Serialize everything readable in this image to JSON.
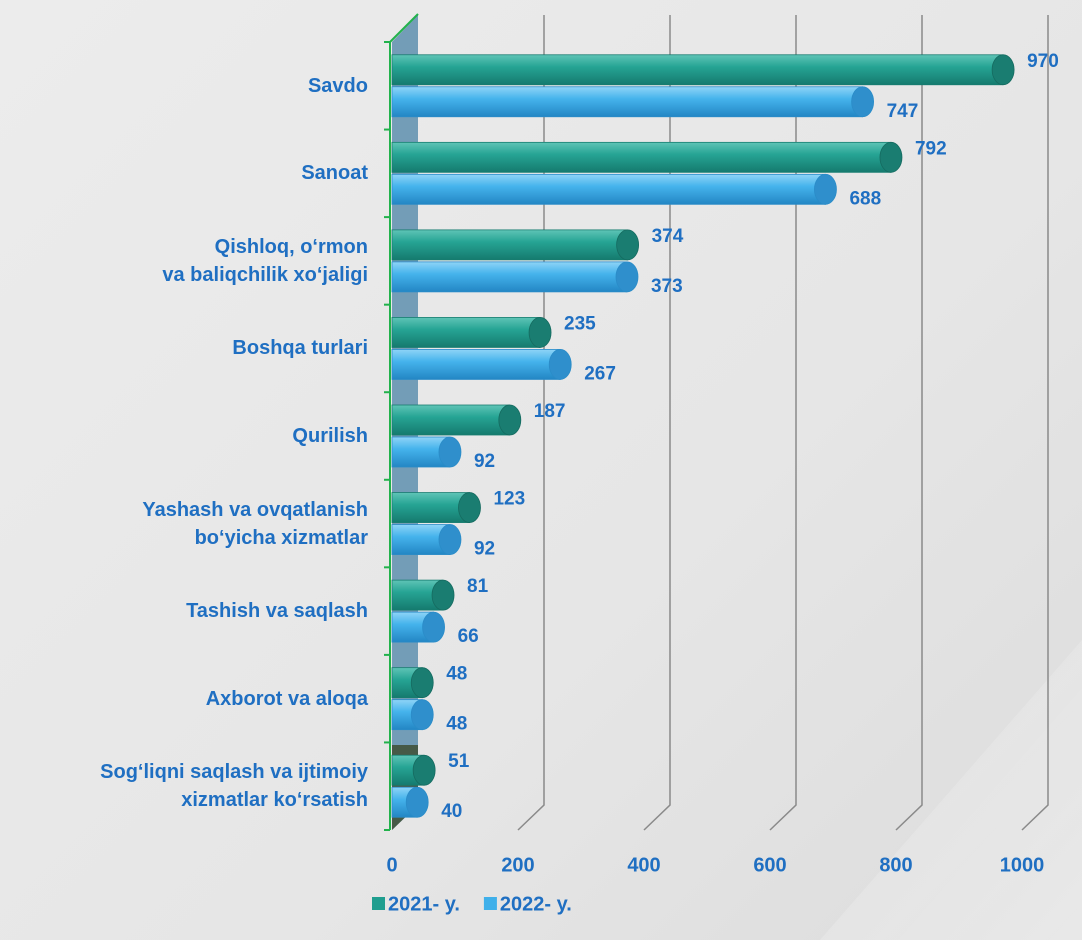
{
  "chart_data": {
    "type": "bar3d-horizontal",
    "categories": [
      "Savdo",
      "Sanoat",
      "Qishloq, o‘rmon\nva baliqchilik xo‘jaligi",
      "Boshqa turlari",
      "Qurilish",
      "Yashash va ovqatlanish\nbo‘yicha xizmatlar",
      "Tashish va saqlash",
      "Axborot va aloqa",
      "Sog‘liqni saqlash va ijtimoiy\nxizmatlar ko‘rsatish"
    ],
    "series": [
      {
        "name": "2021- y.",
        "color": "#1f9e8f",
        "values": [
          970,
          792,
          374,
          235,
          187,
          123,
          81,
          48,
          51
        ]
      },
      {
        "name": "2022- y.",
        "color": "#3fb0ea",
        "values": [
          747,
          688,
          373,
          267,
          92,
          92,
          66,
          48,
          40
        ]
      }
    ],
    "xlim": [
      0,
      1000
    ],
    "xticks": [
      0,
      200,
      400,
      600,
      800,
      1000
    ],
    "grid": true,
    "legend": "bottom"
  }
}
